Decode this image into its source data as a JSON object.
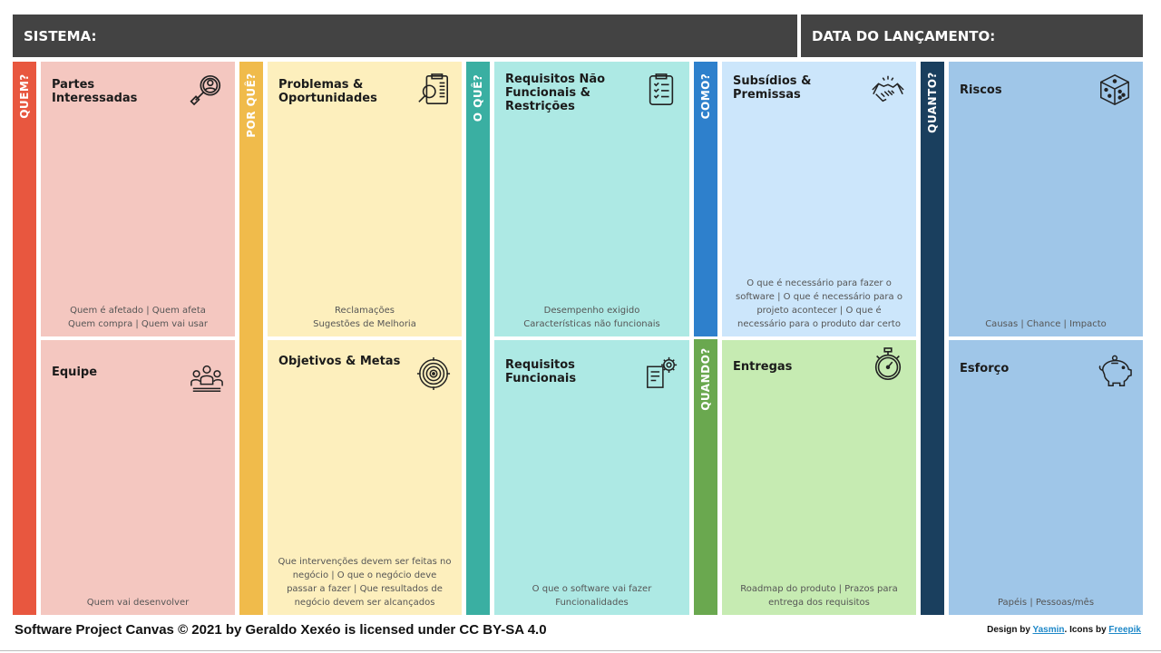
{
  "header": {
    "sistema": "SISTEMA:",
    "data_lancamento": "DATA DO LANÇAMENTO:"
  },
  "tabs": {
    "quem": "QUEM?",
    "por_que": "POR QUÊ?",
    "o_que": "O QUÊ?",
    "como": "COMO?",
    "quando": "QUANDO?",
    "quanto": "QUANTO?"
  },
  "cells": {
    "partes": {
      "title": "Partes Interessadas",
      "desc": [
        "Quem é afetado | Quem afeta",
        "Quem compra | Quem vai usar"
      ],
      "icon": "magnifier-person-icon"
    },
    "equipe": {
      "title": "Equipe",
      "desc": [
        "Quem vai desenvolver"
      ],
      "icon": "team-icon"
    },
    "problemas": {
      "title": "Problemas & Oportunidades",
      "desc": [
        "Reclamações",
        "Sugestões de Melhoria"
      ],
      "icon": "clipboard-search-icon"
    },
    "objetivos": {
      "title": "Objetivos & Metas",
      "desc": [
        "Que intervenções devem ser feitas no",
        "negócio | O que o negócio deve",
        "passar a fazer | Que resultados de",
        "negócio devem ser alcançados"
      ],
      "icon": "target-icon"
    },
    "req_nf": {
      "title": "Requisitos Não Funcionais & Restrições",
      "desc": [
        "Desempenho exigido",
        "Características não funcionais"
      ],
      "icon": "checklist-icon"
    },
    "req_f": {
      "title": "Requisitos Funcionais",
      "desc": [
        "O que o software vai fazer",
        "Funcionalidades"
      ],
      "icon": "gear-document-icon"
    },
    "subsidios": {
      "title": "Subsídios & Premissas",
      "desc": [
        "O que é necessário para fazer o",
        "software | O que é necessário para o",
        "projeto acontecer | O que é",
        "necessário para o produto dar certo"
      ],
      "icon": "handshake-icon"
    },
    "entregas": {
      "title": "Entregas",
      "desc": [
        "Roadmap do produto | Prazos para",
        "entrega dos requisitos"
      ],
      "icon": "stopwatch-icon"
    },
    "riscos": {
      "title": "Riscos",
      "desc": [
        "Causas | Chance | Impacto"
      ],
      "icon": "dice-icon"
    },
    "esforco": {
      "title": "Esforço",
      "desc": [
        "Papéis | Pessoas/mês"
      ],
      "icon": "piggy-bank-icon"
    }
  },
  "footer": {
    "license": "Software Project Canvas © 2021 by Geraldo Xexéo is licensed under CC BY-SA 4.0",
    "design_by": "Design by ",
    "designer": "Yasmin",
    "icons_by": ". Icons by ",
    "icons_source": "Freepik"
  },
  "colors": {
    "header": "#434343",
    "quem_tab": "#e8573f",
    "quem_cell": "#f4c7c0",
    "porque_tab": "#f0bb4b",
    "porque_cell": "#fdefbd",
    "oque_tab": "#3aafa2",
    "oque_cell": "#ade9e4",
    "como_tab": "#2e80cc",
    "como_cell": "#cce6fb",
    "quando_tab": "#6aa84f",
    "quando_cell": "#c6ebb2",
    "quanto_tab": "#1a3f5e",
    "quanto_cell": "#9fc6e8"
  }
}
